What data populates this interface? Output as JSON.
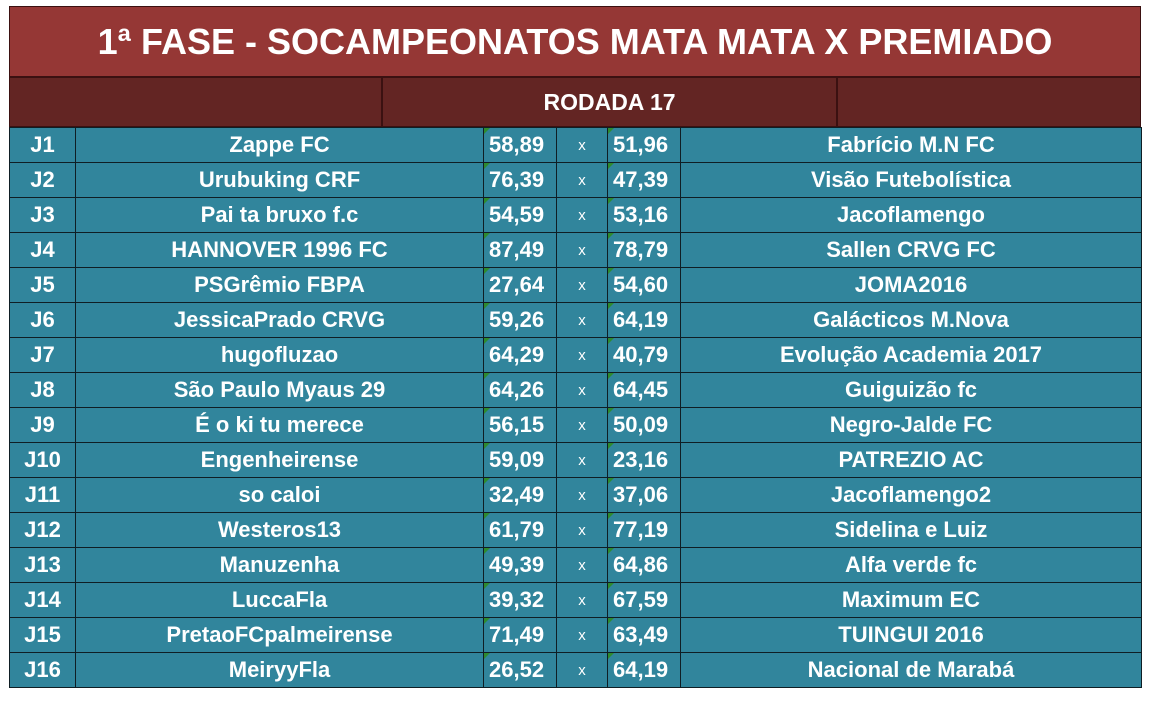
{
  "title": "1ª FASE - SOCAMPEONATOS MATA MATA X PREMIADO",
  "round": "RODADA 17",
  "colors": {
    "title_bg": "#953735",
    "header_bg": "#632523",
    "row_bg": "#31859c",
    "text": "#ffffff"
  },
  "matches": [
    {
      "id": "J1",
      "home": "Zappe FC",
      "home_score": "58,89",
      "vs": "x",
      "away_score": "51,96",
      "away": "Fabrício M.N FC"
    },
    {
      "id": "J2",
      "home": "Urubuking CRF",
      "home_score": "76,39",
      "vs": "x",
      "away_score": "47,39",
      "away": "Visão Futebolística"
    },
    {
      "id": "J3",
      "home": "Pai ta bruxo f.c",
      "home_score": "54,59",
      "vs": "x",
      "away_score": "53,16",
      "away": "Jacoflamengo"
    },
    {
      "id": "J4",
      "home": "HANNOVER 1996 FC",
      "home_score": "87,49",
      "vs": "x",
      "away_score": "78,79",
      "away": "Sallen CRVG FC"
    },
    {
      "id": "J5",
      "home": "PSGrêmio FBPA",
      "home_score": "27,64",
      "vs": "x",
      "away_score": "54,60",
      "away": "JOMA2016"
    },
    {
      "id": "J6",
      "home": "JessicaPrado CRVG",
      "home_score": "59,26",
      "vs": "x",
      "away_score": "64,19",
      "away": "Galácticos M.Nova"
    },
    {
      "id": "J7",
      "home": "hugofluzao",
      "home_score": "64,29",
      "vs": "x",
      "away_score": "40,79",
      "away": "Evolução Academia 2017"
    },
    {
      "id": "J8",
      "home": "São Paulo Myaus 29",
      "home_score": "64,26",
      "vs": "x",
      "away_score": "64,45",
      "away": "Guiguizão fc"
    },
    {
      "id": "J9",
      "home": "É o ki tu merece",
      "home_score": "56,15",
      "vs": "x",
      "away_score": "50,09",
      "away": "Negro-Jalde FC"
    },
    {
      "id": "J10",
      "home": "Engenheirense",
      "home_score": "59,09",
      "vs": "x",
      "away_score": "23,16",
      "away": "PATREZIO AC"
    },
    {
      "id": "J11",
      "home": "so caloi",
      "home_score": "32,49",
      "vs": "x",
      "away_score": "37,06",
      "away": "Jacoflamengo2"
    },
    {
      "id": "J12",
      "home": "Westeros13",
      "home_score": "61,79",
      "vs": "x",
      "away_score": "77,19",
      "away": "Sidelina e Luiz"
    },
    {
      "id": "J13",
      "home": "Manuzenha",
      "home_score": "49,39",
      "vs": "x",
      "away_score": "64,86",
      "away": "Alfa verde fc"
    },
    {
      "id": "J14",
      "home": "LuccaFla",
      "home_score": "39,32",
      "vs": "x",
      "away_score": "67,59",
      "away": "Maximum EC"
    },
    {
      "id": "J15",
      "home": "PretaoFCpalmeirense",
      "home_score": "71,49",
      "vs": "x",
      "away_score": "63,49",
      "away": "TUINGUI 2016"
    },
    {
      "id": "J16",
      "home": "MeiryyFla",
      "home_score": "26,52",
      "vs": "x",
      "away_score": "64,19",
      "away": "Nacional de Marabá"
    }
  ]
}
